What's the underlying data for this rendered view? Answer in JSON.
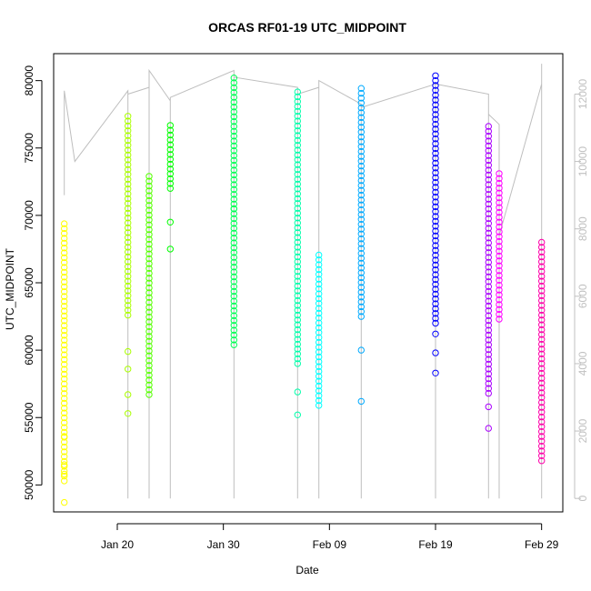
{
  "chart_data": {
    "type": "scatter",
    "title": "ORCAS RF01-19 UTC_MIDPOINT",
    "xlabel": "Date",
    "ylabel": "UTC_MIDPOINT",
    "xlim": [
      "2016-01-14",
      "2016-03-02"
    ],
    "ylim": [
      48000,
      82000
    ],
    "y2lim": [
      -400,
      13200
    ],
    "x_ticks": [
      {
        "label": "Jan 20",
        "date": "2016-01-20"
      },
      {
        "label": "Jan 30",
        "date": "2016-01-30"
      },
      {
        "label": "Feb 09",
        "date": "2016-02-09"
      },
      {
        "label": "Feb 19",
        "date": "2016-02-19"
      },
      {
        "label": "Feb 29",
        "date": "2016-02-29"
      }
    ],
    "y_ticks": [
      50000,
      55000,
      60000,
      65000,
      70000,
      75000,
      80000
    ],
    "y2_ticks": [
      0,
      2000,
      4000,
      6000,
      8000,
      10000,
      12000
    ],
    "series": [
      {
        "date": "2016-01-15",
        "color": "#FFFF00",
        "ymin": 48700,
        "ymax": 71800,
        "gmin": 50300,
        "gmax": 69500,
        "sparse": [
          48700,
          50800,
          51500,
          53600
        ]
      },
      {
        "date": "2016-01-21",
        "color": "#AAFF00",
        "ymin": 55300,
        "ymax": 77500,
        "gmin": 62600,
        "gmax": 77500,
        "sparse": [
          55300,
          56700,
          58600,
          59900
        ]
      },
      {
        "date": "2016-01-23",
        "color": "#55FF00",
        "ymin": 56700,
        "ymax": 73200,
        "gmin": 56700,
        "gmax": 73200,
        "sparse": []
      },
      {
        "date": "2016-01-25",
        "color": "#00FF00",
        "ymin": 67500,
        "ymax": 76700,
        "gmin": 72000,
        "gmax": 76700,
        "sparse": [
          67500,
          69500
        ]
      },
      {
        "date": "2016-01-31",
        "color": "#00FF55",
        "ymin": 60400,
        "ymax": 80200,
        "gmin": 60400,
        "gmax": 80200,
        "sparse": [
          70500
        ]
      },
      {
        "date": "2016-02-06",
        "color": "#00FFAA",
        "ymin": 55200,
        "ymax": 79500,
        "gmin": 59000,
        "gmax": 79500,
        "sparse": [
          55200,
          56900
        ]
      },
      {
        "date": "2016-02-08",
        "color": "#00FFFF",
        "ymin": 55900,
        "ymax": 67400,
        "gmin": 55900,
        "gmax": 67400,
        "sparse": []
      },
      {
        "date": "2016-02-12",
        "color": "#00AAFF",
        "ymin": 56200,
        "ymax": 79500,
        "gmin": 62500,
        "gmax": 79500,
        "sparse": [
          56200,
          60000
        ]
      },
      {
        "date": "2016-02-19",
        "color": "#0000FF",
        "ymin": 58300,
        "ymax": 80600,
        "gmin": 62000,
        "gmax": 80600,
        "sparse": [
          58300,
          59800,
          61200
        ]
      },
      {
        "date": "2016-02-24",
        "color": "#AA00FF",
        "ymin": 54200,
        "ymax": 76700,
        "gmin": 56800,
        "gmax": 76700,
        "sparse": [
          54200,
          55800
        ]
      },
      {
        "date": "2016-02-25",
        "color": "#FF00FF",
        "ymin": 62300,
        "ymax": 73200,
        "gmin": 62300,
        "gmax": 73200,
        "sparse": []
      },
      {
        "date": "2016-02-29",
        "color": "#FF00AA",
        "ymin": 51800,
        "ymax": 68000,
        "gmin": 51800,
        "gmax": 68000,
        "sparse": []
      }
    ],
    "overlay_line": {
      "color": "#bebebe",
      "points": [
        [
          "2016-01-15",
          12100
        ],
        [
          "2016-01-15",
          9000
        ],
        [
          "2016-01-15",
          12100
        ],
        [
          "2016-01-15",
          12100
        ],
        [
          "2016-01-16",
          10000
        ],
        [
          "2016-01-21",
          12100
        ],
        [
          "2016-01-21",
          0
        ],
        [
          "2016-01-21",
          12000
        ],
        [
          "2016-01-23",
          12200
        ],
        [
          "2016-01-23",
          0
        ],
        [
          "2016-01-23",
          12700
        ],
        [
          "2016-01-25",
          11800
        ],
        [
          "2016-01-25",
          0
        ],
        [
          "2016-01-25",
          11900
        ],
        [
          "2016-01-31",
          12700
        ],
        [
          "2016-01-31",
          0
        ],
        [
          "2016-01-31",
          12500
        ],
        [
          "2016-02-06",
          12200
        ],
        [
          "2016-02-06",
          0
        ],
        [
          "2016-02-06",
          12000
        ],
        [
          "2016-02-08",
          12200
        ],
        [
          "2016-02-08",
          0
        ],
        [
          "2016-02-08",
          12400
        ],
        [
          "2016-02-12",
          11700
        ],
        [
          "2016-02-12",
          0
        ],
        [
          "2016-02-12",
          11600
        ],
        [
          "2016-02-19",
          12300
        ],
        [
          "2016-02-19",
          0
        ],
        [
          "2016-02-19",
          12300
        ],
        [
          "2016-02-24",
          12000
        ],
        [
          "2016-02-24",
          0
        ],
        [
          "2016-02-24",
          11400
        ],
        [
          "2016-02-25",
          11100
        ],
        [
          "2016-02-25",
          0
        ],
        [
          "2016-02-25",
          7800
        ],
        [
          "2016-02-29",
          12300
        ],
        [
          "2016-02-29",
          0
        ],
        [
          "2016-02-29",
          12900
        ]
      ]
    },
    "grid": false,
    "legend": "none"
  }
}
